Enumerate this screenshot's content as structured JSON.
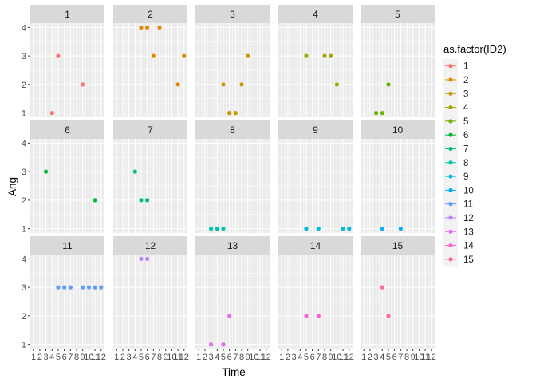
{
  "chart_data": {
    "type": "scatter",
    "layout": "facet_wrap",
    "ncol": 5,
    "xlabel": "Time",
    "ylabel": "Ang",
    "xlim": [
      0.45,
      12.55
    ],
    "ylim": [
      0.85,
      4.15
    ],
    "x_ticks": [
      1,
      2,
      3,
      4,
      5,
      6,
      7,
      8,
      9,
      10,
      11,
      12
    ],
    "x_tick_labels": [
      "1",
      "2",
      "3",
      "4",
      "5",
      "6",
      "7",
      "8",
      "9",
      "10",
      "11",
      "12"
    ],
    "y_ticks": [
      1,
      2,
      3,
      4
    ],
    "y_tick_labels": [
      "1",
      "2",
      "3",
      "4"
    ],
    "legend": {
      "title": "as.factor(ID2)",
      "position": "right",
      "entries": [
        "1",
        "2",
        "3",
        "4",
        "5",
        "6",
        "7",
        "8",
        "9",
        "10",
        "11",
        "12",
        "13",
        "14",
        "15"
      ]
    },
    "colors": {
      "1": "#F8766D",
      "2": "#E58700",
      "3": "#C99800",
      "4": "#A3A500",
      "5": "#6BB100",
      "6": "#00BA38",
      "7": "#00BF7D",
      "8": "#00C0AF",
      "9": "#00BCD8",
      "10": "#00B0F6",
      "11": "#619CFF",
      "12": "#B983FF",
      "13": "#E76BF3",
      "14": "#FD61D1",
      "15": "#FF67A4"
    },
    "panels": [
      {
        "id": "1",
        "points": [
          [
            4,
            1
          ],
          [
            5,
            3
          ],
          [
            9,
            2
          ]
        ]
      },
      {
        "id": "2",
        "points": [
          [
            5,
            4
          ],
          [
            6,
            4
          ],
          [
            7,
            3
          ],
          [
            8,
            4
          ],
          [
            11,
            2
          ],
          [
            12,
            3
          ]
        ]
      },
      {
        "id": "3",
        "points": [
          [
            5,
            2
          ],
          [
            6,
            1
          ],
          [
            7,
            1
          ],
          [
            8,
            2
          ],
          [
            9,
            3
          ]
        ]
      },
      {
        "id": "4",
        "points": [
          [
            5,
            3
          ],
          [
            8,
            3
          ],
          [
            9,
            3
          ],
          [
            10,
            2
          ]
        ]
      },
      {
        "id": "5",
        "points": [
          [
            3,
            1
          ],
          [
            4,
            1
          ],
          [
            5,
            2
          ]
        ]
      },
      {
        "id": "6",
        "points": [
          [
            3,
            3
          ],
          [
            11,
            2
          ]
        ]
      },
      {
        "id": "7",
        "points": [
          [
            4,
            3
          ],
          [
            5,
            2
          ],
          [
            6,
            2
          ]
        ]
      },
      {
        "id": "8",
        "points": [
          [
            3,
            1
          ],
          [
            4,
            1
          ],
          [
            5,
            1
          ]
        ]
      },
      {
        "id": "9",
        "points": [
          [
            5,
            1
          ],
          [
            7,
            1
          ],
          [
            11,
            1
          ],
          [
            12,
            1
          ]
        ]
      },
      {
        "id": "10",
        "points": [
          [
            4,
            1
          ],
          [
            7,
            1
          ]
        ]
      },
      {
        "id": "11",
        "points": [
          [
            5,
            3
          ],
          [
            6,
            3
          ],
          [
            7,
            3
          ],
          [
            9,
            3
          ],
          [
            10,
            3
          ],
          [
            11,
            3
          ],
          [
            12,
            3
          ]
        ]
      },
      {
        "id": "12",
        "points": [
          [
            5,
            4
          ],
          [
            6,
            4
          ]
        ]
      },
      {
        "id": "13",
        "points": [
          [
            3,
            1
          ],
          [
            5,
            1
          ],
          [
            6,
            2
          ]
        ]
      },
      {
        "id": "14",
        "points": [
          [
            5,
            2
          ],
          [
            7,
            2
          ]
        ]
      },
      {
        "id": "15",
        "points": [
          [
            4,
            3
          ],
          [
            5,
            2
          ]
        ]
      }
    ]
  }
}
